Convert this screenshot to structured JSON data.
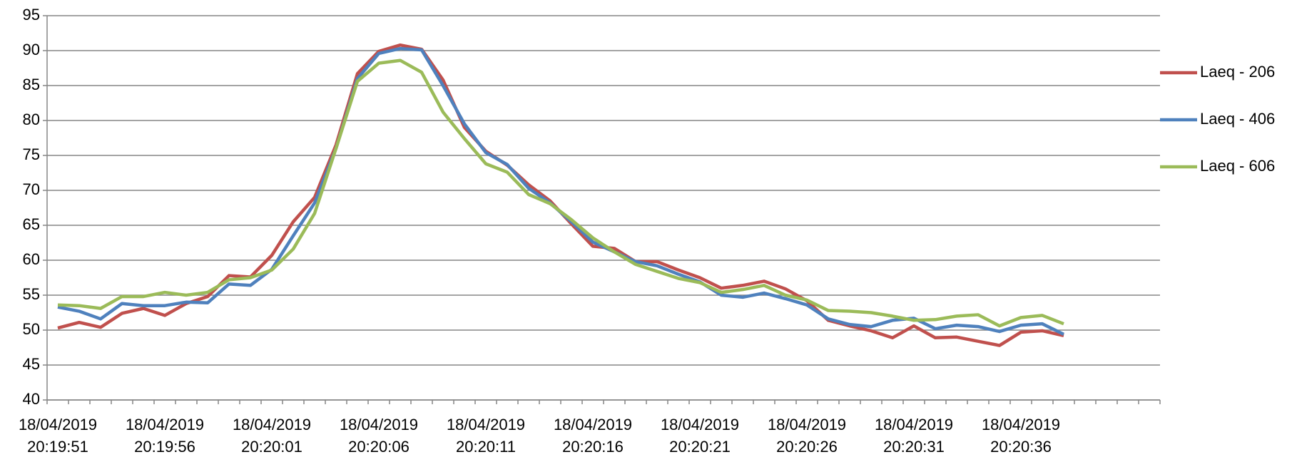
{
  "chart_data": {
    "type": "line",
    "categories": [
      "18/04/2019 20:19:51",
      null,
      null,
      null,
      null,
      "18/04/2019 20:19:56",
      null,
      null,
      null,
      null,
      "18/04/2019 20:20:01",
      null,
      null,
      null,
      null,
      "18/04/2019 20:20:06",
      null,
      null,
      null,
      null,
      "18/04/2019 20:20:11",
      null,
      null,
      null,
      null,
      "18/04/2019 20:20:16",
      null,
      null,
      null,
      null,
      "18/04/2019 20:20:21",
      null,
      null,
      null,
      null,
      "18/04/2019 20:20:26",
      null,
      null,
      null,
      null,
      "18/04/2019 20:20:31",
      null,
      null,
      null,
      null,
      "18/04/2019 20:20:36",
      null,
      null,
      null,
      null,
      null,
      null
    ],
    "series": [
      {
        "name": "Laeq - 206",
        "color": "#c0504d",
        "values": [
          50.3,
          51.1,
          50.4,
          52.4,
          53.1,
          52.1,
          53.8,
          54.8,
          57.8,
          57.6,
          60.7,
          65.5,
          69.0,
          76.5,
          86.7,
          89.9,
          90.8,
          90.2,
          85.8,
          79.0,
          75.6,
          73.6,
          70.8,
          68.5,
          65.2,
          62.0,
          61.7,
          59.8,
          59.8,
          58.6,
          57.5,
          56.0,
          56.4,
          57.0,
          55.9,
          54.2,
          51.4,
          50.6,
          49.9,
          48.9,
          50.6,
          48.9,
          49.0,
          48.4,
          47.8,
          49.7,
          49.9,
          49.2,
          null,
          null,
          null,
          null
        ]
      },
      {
        "name": "Laeq - 406",
        "color": "#4f81bd",
        "values": [
          53.3,
          52.7,
          51.6,
          53.8,
          53.5,
          53.5,
          54.0,
          53.9,
          56.6,
          56.4,
          58.7,
          63.5,
          68.2,
          76.0,
          86.0,
          89.6,
          90.3,
          90.1,
          85.0,
          79.5,
          75.4,
          73.7,
          70.3,
          68.2,
          65.5,
          62.6,
          61.2,
          59.8,
          59.2,
          58.0,
          56.9,
          55.0,
          54.7,
          55.3,
          54.5,
          53.6,
          51.6,
          50.8,
          50.5,
          51.4,
          51.7,
          50.2,
          50.7,
          50.5,
          49.8,
          50.7,
          50.9,
          49.4,
          null,
          null,
          null,
          null
        ]
      },
      {
        "name": "Laeq - 606",
        "color": "#9bbb59",
        "values": [
          53.6,
          53.5,
          53.1,
          54.8,
          54.8,
          55.4,
          55.0,
          55.4,
          57.2,
          57.5,
          58.6,
          61.6,
          66.7,
          76.0,
          85.6,
          88.2,
          88.6,
          86.9,
          81.2,
          77.4,
          73.8,
          72.6,
          69.4,
          68.1,
          65.8,
          63.2,
          61.2,
          59.4,
          58.4,
          57.4,
          56.8,
          55.4,
          55.8,
          56.4,
          55.0,
          54.3,
          52.8,
          52.7,
          52.5,
          52.0,
          51.4,
          51.5,
          52.0,
          52.2,
          50.6,
          51.8,
          52.1,
          50.9,
          null,
          null,
          null,
          null
        ]
      }
    ],
    "ylim": [
      40,
      95
    ],
    "yticks": [
      40,
      45,
      50,
      55,
      60,
      65,
      70,
      75,
      80,
      85,
      90,
      95
    ],
    "grid": true,
    "legend": "right"
  }
}
